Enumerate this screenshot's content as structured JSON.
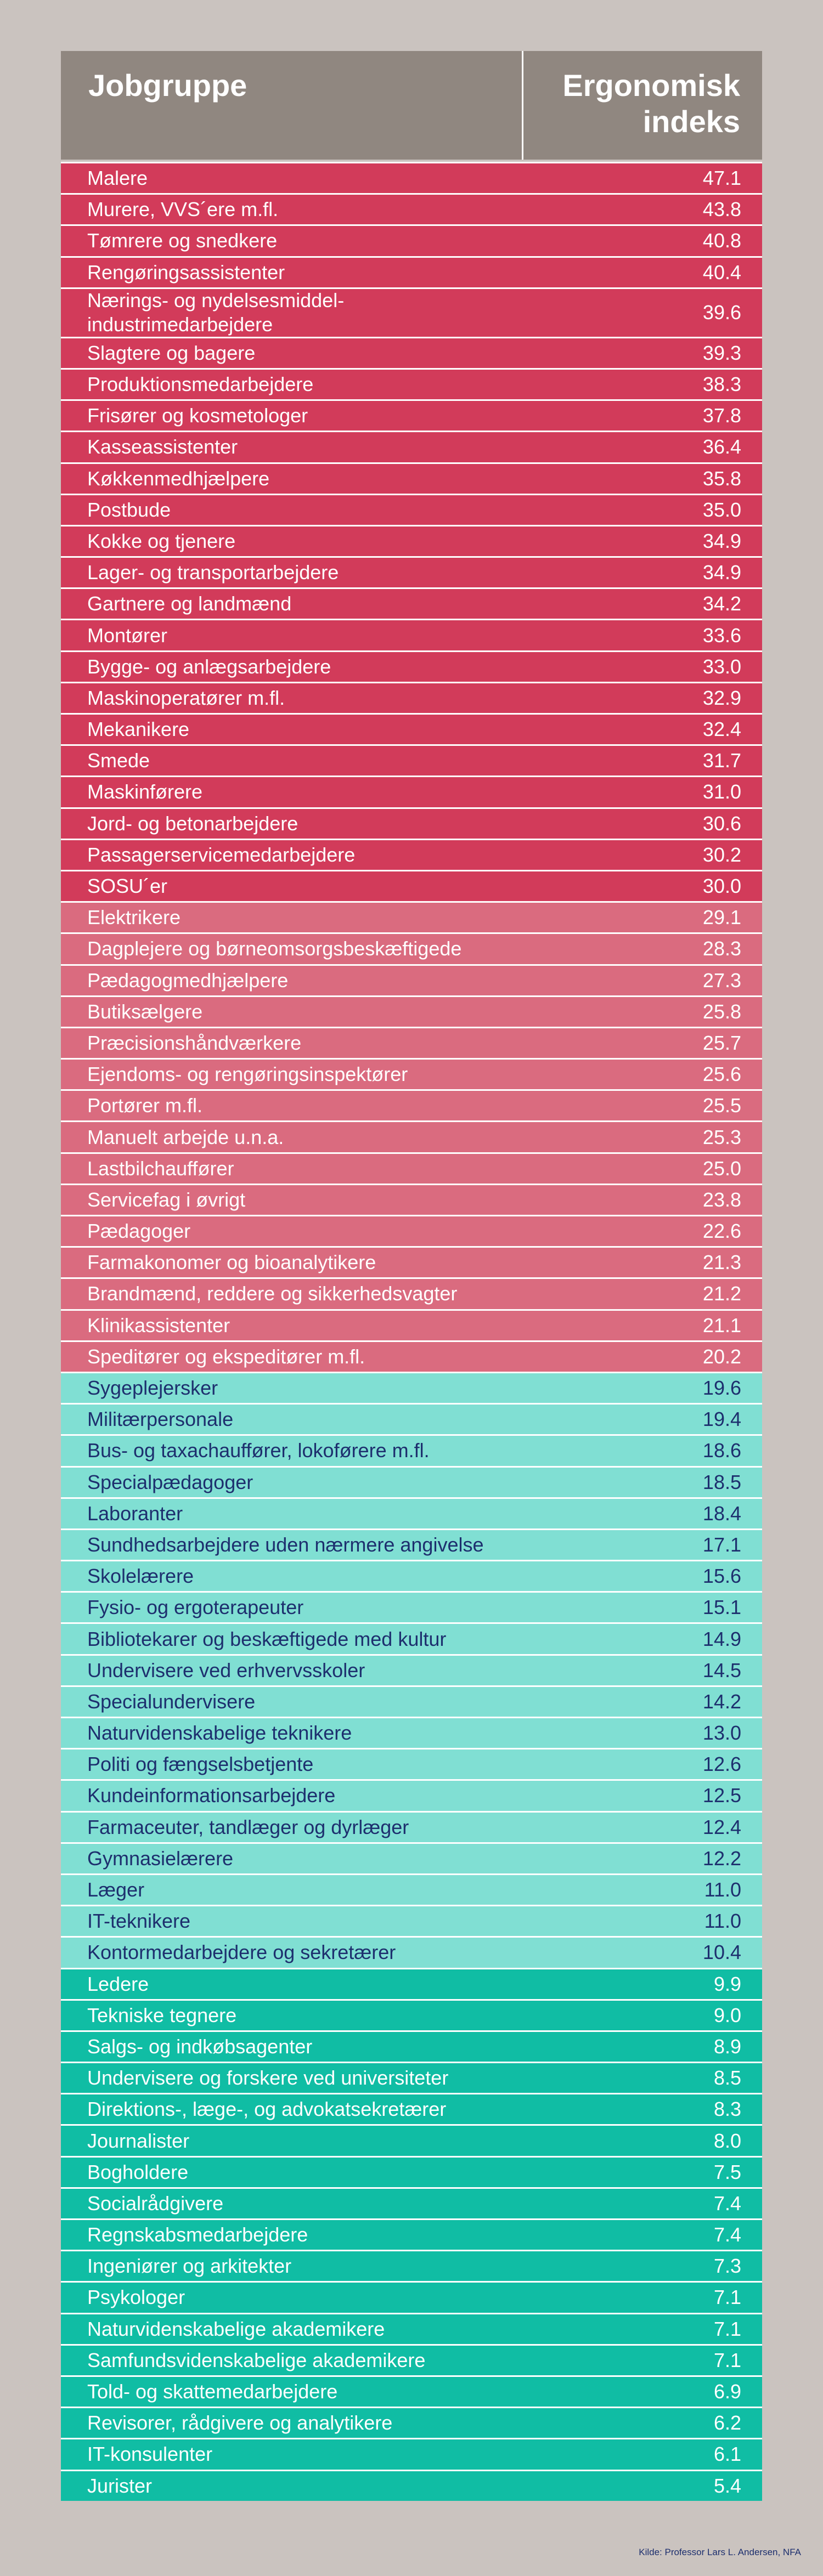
{
  "header": {
    "col1": "Jobgruppe",
    "col2": "Ergonomisk\nindeks"
  },
  "source": "Kilde: Professor Lars L. Andersen, NFA",
  "colors": {
    "background": "#cac3bf",
    "header": "#908780",
    "dark_red": "#d23b5a",
    "light_red": "#da6b7f",
    "light_teal": "#80dfd3",
    "teal": "#10bda4",
    "navy_text": "#1d2f6e"
  },
  "chart_data": {
    "type": "table",
    "columns": [
      "Jobgruppe",
      "Ergonomisk indeks"
    ],
    "rows": [
      {
        "job": "Malere",
        "value": "47.1",
        "band": "dark"
      },
      {
        "job": "Murere, VVS´ere m.fl.",
        "value": "43.8",
        "band": "dark"
      },
      {
        "job": "Tømrere og snedkere",
        "value": "40.8",
        "band": "dark"
      },
      {
        "job": "Rengøringsassistenter",
        "value": "40.4",
        "band": "dark"
      },
      {
        "job": "Nærings- og nydelsesmiddel-\nindustrimedarbejdere",
        "value": "39.6",
        "band": "dark",
        "tall": true
      },
      {
        "job": "Slagtere og bagere",
        "value": "39.3",
        "band": "dark"
      },
      {
        "job": "Produktionsmedarbejdere",
        "value": "38.3",
        "band": "dark"
      },
      {
        "job": "Frisører og kosmetologer",
        "value": "37.8",
        "band": "dark"
      },
      {
        "job": "Kasseassistenter",
        "value": "36.4",
        "band": "dark"
      },
      {
        "job": "Køkkenmedhjælpere",
        "value": "35.8",
        "band": "dark"
      },
      {
        "job": "Postbude",
        "value": "35.0",
        "band": "dark"
      },
      {
        "job": "Kokke og tjenere",
        "value": "34.9",
        "band": "dark"
      },
      {
        "job": "Lager- og transportarbejdere",
        "value": "34.9",
        "band": "dark"
      },
      {
        "job": "Gartnere og landmænd",
        "value": "34.2",
        "band": "dark"
      },
      {
        "job": "Montører",
        "value": "33.6",
        "band": "dark"
      },
      {
        "job": "Bygge- og anlægsarbejdere",
        "value": "33.0",
        "band": "dark"
      },
      {
        "job": "Maskinoperatører m.fl.",
        "value": "32.9",
        "band": "dark"
      },
      {
        "job": "Mekanikere",
        "value": "32.4",
        "band": "dark"
      },
      {
        "job": "Smede",
        "value": "31.7",
        "band": "dark"
      },
      {
        "job": "Maskinførere",
        "value": "31.0",
        "band": "dark"
      },
      {
        "job": "Jord- og betonarbejdere",
        "value": "30.6",
        "band": "dark"
      },
      {
        "job": "Passagerservicemedarbejdere",
        "value": "30.2",
        "band": "dark"
      },
      {
        "job": "SOSU´er",
        "value": "30.0",
        "band": "dark"
      },
      {
        "job": "Elektrikere",
        "value": "29.1",
        "band": "light"
      },
      {
        "job": "Dagplejere og børneomsorgsbeskæftigede",
        "value": "28.3",
        "band": "light"
      },
      {
        "job": "Pædagogmedhjælpere",
        "value": "27.3",
        "band": "light"
      },
      {
        "job": "Butiksælgere",
        "value": "25.8",
        "band": "light"
      },
      {
        "job": "Præcisionshåndværkere",
        "value": "25.7",
        "band": "light"
      },
      {
        "job": "Ejendoms- og rengøringsinspektører",
        "value": "25.6",
        "band": "light"
      },
      {
        "job": "Portører m.fl.",
        "value": "25.5",
        "band": "light"
      },
      {
        "job": "Manuelt arbejde u.n.a.",
        "value": "25.3",
        "band": "light"
      },
      {
        "job": "Lastbilchauffører",
        "value": "25.0",
        "band": "light"
      },
      {
        "job": "Servicefag i øvrigt",
        "value": "23.8",
        "band": "light"
      },
      {
        "job": "Pædagoger",
        "value": "22.6",
        "band": "light"
      },
      {
        "job": "Farmakonomer og bioanalytikere",
        "value": "21.3",
        "band": "light"
      },
      {
        "job": "Brandmænd, reddere og sikkerhedsvagter",
        "value": "21.2",
        "band": "light"
      },
      {
        "job": "Klinikassistenter",
        "value": "21.1",
        "band": "light"
      },
      {
        "job": "Speditører og ekspeditører m.fl.",
        "value": "20.2",
        "band": "light"
      },
      {
        "job": "Sygeplejersker",
        "value": "19.6",
        "band": "cyan"
      },
      {
        "job": "Militærpersonale",
        "value": "19.4",
        "band": "cyan"
      },
      {
        "job": "Bus- og taxachauffører, lokoførere m.fl.",
        "value": "18.6",
        "band": "cyan"
      },
      {
        "job": "Specialpædagoger",
        "value": "18.5",
        "band": "cyan"
      },
      {
        "job": "Laboranter",
        "value": "18.4",
        "band": "cyan"
      },
      {
        "job": "Sundhedsarbejdere uden nærmere angivelse",
        "value": "17.1",
        "band": "cyan"
      },
      {
        "job": "Skolelærere",
        "value": "15.6",
        "band": "cyan"
      },
      {
        "job": "Fysio- og ergoterapeuter",
        "value": "15.1",
        "band": "cyan"
      },
      {
        "job": "Bibliotekarer og beskæftigede med kultur",
        "value": "14.9",
        "band": "cyan"
      },
      {
        "job": "Undervisere ved erhvervsskoler",
        "value": "14.5",
        "band": "cyan"
      },
      {
        "job": "Specialundervisere",
        "value": "14.2",
        "band": "cyan"
      },
      {
        "job": "Naturvidenskabelige teknikere",
        "value": "13.0",
        "band": "cyan"
      },
      {
        "job": "Politi og fængselsbetjente",
        "value": "12.6",
        "band": "cyan"
      },
      {
        "job": "Kundeinformationsarbejdere",
        "value": "12.5",
        "band": "cyan"
      },
      {
        "job": "Farmaceuter, tandlæger og dyrlæger",
        "value": "12.4",
        "band": "cyan"
      },
      {
        "job": "Gymnasielærere",
        "value": "12.2",
        "band": "cyan"
      },
      {
        "job": "Læger",
        "value": "11.0",
        "band": "cyan"
      },
      {
        "job": "IT-teknikere",
        "value": "11.0",
        "band": "cyan"
      },
      {
        "job": "Kontormedarbejdere og sekretærer",
        "value": "10.4",
        "band": "cyan"
      },
      {
        "job": "Ledere",
        "value": "9.9",
        "band": "teal"
      },
      {
        "job": "Tekniske tegnere",
        "value": "9.0",
        "band": "teal"
      },
      {
        "job": "Salgs- og indkøbsagenter",
        "value": "8.9",
        "band": "teal"
      },
      {
        "job": "Undervisere og forskere ved universiteter",
        "value": "8.5",
        "band": "teal"
      },
      {
        "job": "Direktions-, læge-, og advokatsekretærer",
        "value": "8.3",
        "band": "teal"
      },
      {
        "job": "Journalister",
        "value": "8.0",
        "band": "teal"
      },
      {
        "job": "Bogholdere",
        "value": "7.5",
        "band": "teal"
      },
      {
        "job": "Socialrådgivere",
        "value": "7.4",
        "band": "teal"
      },
      {
        "job": "Regnskabsmedarbejdere",
        "value": "7.4",
        "band": "teal"
      },
      {
        "job": "Ingeniører og arkitekter",
        "value": "7.3",
        "band": "teal"
      },
      {
        "job": "Psykologer",
        "value": "7.1",
        "band": "teal"
      },
      {
        "job": "Naturvidenskabelige akademikere",
        "value": "7.1",
        "band": "teal"
      },
      {
        "job": "Samfundsvidenskabelige akademikere",
        "value": "7.1",
        "band": "teal"
      },
      {
        "job": "Told- og skattemedarbejdere",
        "value": "6.9",
        "band": "teal"
      },
      {
        "job": "Revisorer, rådgivere og analytikere",
        "value": "6.2",
        "band": "teal"
      },
      {
        "job": "IT-konsulenter",
        "value": "6.1",
        "band": "teal"
      },
      {
        "job": "Jurister",
        "value": "5.4",
        "band": "teal"
      }
    ]
  }
}
